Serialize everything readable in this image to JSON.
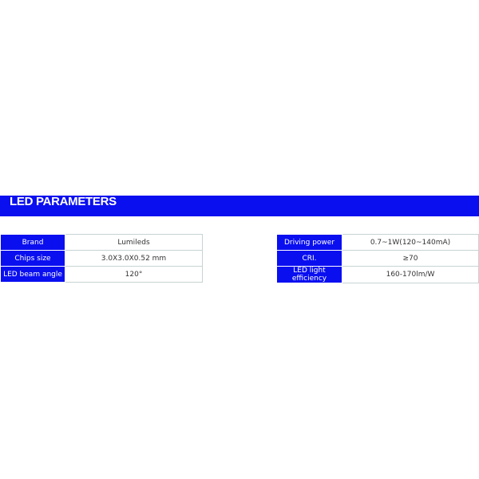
{
  "section_title": "LED PARAMETERS",
  "colors": {
    "accent": "#0a0ff0"
  },
  "left_table": [
    {
      "label": "Brand",
      "value": "Lumileds"
    },
    {
      "label": "Chips size",
      "value": "3.0X3.0X0.52 mm"
    },
    {
      "label": "LED beam angle",
      "value": "120°"
    }
  ],
  "right_table": [
    {
      "label": "Driving power",
      "value": "0.7~1W(120~140mA)"
    },
    {
      "label": "CRI.",
      "value": "≥70"
    },
    {
      "label": "LED light efficiency",
      "value": "160-170lm/W"
    }
  ]
}
